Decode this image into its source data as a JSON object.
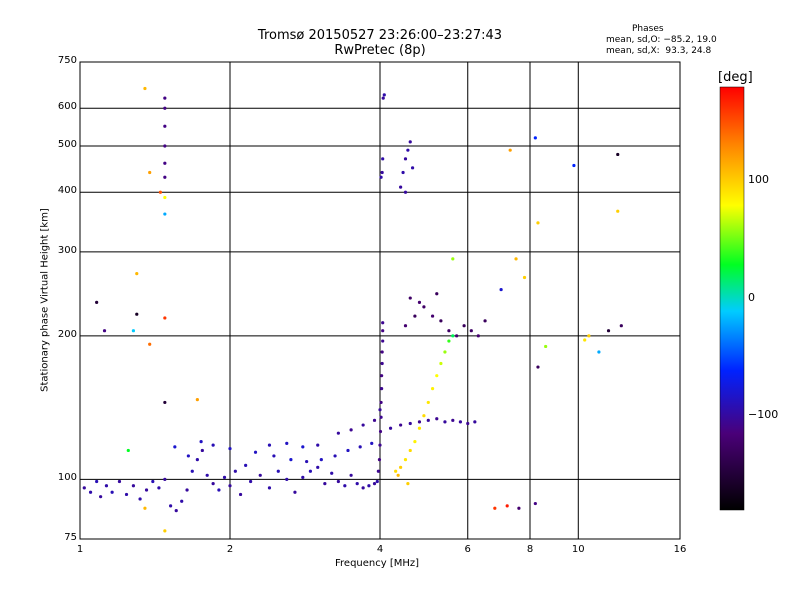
{
  "header": {
    "title_line1": "Tromsø 20150527 23:26:00–23:27:43",
    "title_line2": "RwPretec (8p)"
  },
  "phases": {
    "heading": "Phases",
    "o_line": "mean, sd,O: −85.2, 19.0",
    "x_line": "mean, sd,X:  93.3, 24.8"
  },
  "colorbar": {
    "unit": "[deg]",
    "ticks": [
      {
        "label": "100",
        "value": 100
      },
      {
        "label": "0",
        "value": 0
      },
      {
        "label": "−100",
        "value": -100
      }
    ],
    "range": [
      -180,
      180
    ]
  },
  "chart_data": {
    "type": "scatter",
    "title": "Tromsø 20150527 23:26:00–23:27:43",
    "subtitle": "RwPretec (8p)",
    "xlabel": "Frequency [MHz]",
    "ylabel": "Stationary phase Virtual Height [km]",
    "x_scale": "log2",
    "y_scale": "log",
    "xlim": [
      1,
      16
    ],
    "ylim": [
      75,
      750
    ],
    "x_ticks": [
      {
        "label": "1",
        "value": 1
      },
      {
        "label": "2",
        "value": 2
      },
      {
        "label": "4",
        "value": 4
      },
      {
        "label": "6",
        "value": 6
      },
      {
        "label": "8",
        "value": 8
      },
      {
        "label": "10",
        "value": 10
      },
      {
        "label": "16",
        "value": 16
      }
    ],
    "y_ticks": [
      {
        "label": "750",
        "value": 750
      },
      {
        "label": "600",
        "value": 600
      },
      {
        "label": "500",
        "value": 500
      },
      {
        "label": "400",
        "value": 400
      },
      {
        "label": "300",
        "value": 300
      },
      {
        "label": "200",
        "value": 200
      },
      {
        "label": "100",
        "value": 100
      },
      {
        "label": "75",
        "value": 75
      }
    ],
    "grid": true,
    "color_scale": "phase [deg], rainbow from black (−180) through blue, cyan, green, yellow to red (+180)",
    "point_groups": [
      {
        "trace": "low E/F1 layer, blue",
        "x_range": [
          1.0,
          4.0
        ],
        "y_range": [
          85,
          120
        ],
        "phase_deg": -95
      },
      {
        "trace": "O-mode F trace",
        "x_range": [
          3.6,
          6.3
        ],
        "y_range": [
          125,
          135
        ],
        "phase_deg": -100
      },
      {
        "trace": "near-vertical cusp",
        "x_range": [
          3.95,
          4.1
        ],
        "y_range": [
          100,
          215
        ],
        "phase_deg": -105
      },
      {
        "trace": "X-mode trace, yellow/green",
        "x_range": [
          4.1,
          5.5
        ],
        "y_range": [
          100,
          200
        ],
        "phase_deg": 95
      },
      {
        "trace": "upper scatter, violet/blue",
        "x_range": [
          4.5,
          6.5
        ],
        "y_range": [
          200,
          250
        ],
        "phase_deg": -120
      },
      {
        "trace": "high echoes",
        "x_range": [
          4.0,
          4.6
        ],
        "y_range": [
          400,
          640
        ],
        "phase_deg": -95
      }
    ],
    "points": [
      [
        1.02,
        96,
        -100
      ],
      [
        1.05,
        94,
        -95
      ],
      [
        1.08,
        99,
        -90
      ],
      [
        1.1,
        92,
        -100
      ],
      [
        1.13,
        97,
        -95
      ],
      [
        1.16,
        94,
        -90
      ],
      [
        1.2,
        99,
        -100
      ],
      [
        1.24,
        93,
        -95
      ],
      [
        1.28,
        97,
        -100
      ],
      [
        1.32,
        91,
        -95
      ],
      [
        1.36,
        95,
        -100
      ],
      [
        1.4,
        99,
        -90
      ],
      [
        1.44,
        96,
        -95
      ],
      [
        1.48,
        100,
        -100
      ],
      [
        1.52,
        88,
        -95
      ],
      [
        1.56,
        86,
        -100
      ],
      [
        1.6,
        90,
        -95
      ],
      [
        1.64,
        95,
        -100
      ],
      [
        1.68,
        104,
        -90
      ],
      [
        1.72,
        110,
        -95
      ],
      [
        1.76,
        115,
        -100
      ],
      [
        1.8,
        102,
        -95
      ],
      [
        1.85,
        98,
        -100
      ],
      [
        1.9,
        95,
        -90
      ],
      [
        1.95,
        101,
        -95
      ],
      [
        2.0,
        97,
        -100
      ],
      [
        2.05,
        104,
        -95
      ],
      [
        2.1,
        93,
        -100
      ],
      [
        2.15,
        107,
        -90
      ],
      [
        2.2,
        99,
        -95
      ],
      [
        2.3,
        102,
        -100
      ],
      [
        2.4,
        96,
        -95
      ],
      [
        2.5,
        104,
        -90
      ],
      [
        2.6,
        100,
        -95
      ],
      [
        2.7,
        94,
        -100
      ],
      [
        2.8,
        101,
        -95
      ],
      [
        2.9,
        104,
        -90
      ],
      [
        3.0,
        106,
        -95
      ],
      [
        3.1,
        98,
        -100
      ],
      [
        3.2,
        103,
        -95
      ],
      [
        3.3,
        99,
        -100
      ],
      [
        3.4,
        97,
        -95
      ],
      [
        3.5,
        102,
        -100
      ],
      [
        3.6,
        98,
        -95
      ],
      [
        3.7,
        96,
        -100
      ],
      [
        3.8,
        97,
        -95
      ],
      [
        3.9,
        98,
        -100
      ],
      [
        3.95,
        99,
        -95
      ],
      [
        2.25,
        114,
        -85
      ],
      [
        2.45,
        112,
        -90
      ],
      [
        2.65,
        110,
        -80
      ],
      [
        2.85,
        109,
        -90
      ],
      [
        3.05,
        110,
        -85
      ],
      [
        3.25,
        112,
        -90
      ],
      [
        3.45,
        115,
        -85
      ],
      [
        3.65,
        117,
        -90
      ],
      [
        3.85,
        119,
        -85
      ],
      [
        1.55,
        117,
        -80
      ],
      [
        1.65,
        112,
        -85
      ],
      [
        1.75,
        120,
        -85
      ],
      [
        1.85,
        118,
        -90
      ],
      [
        2.0,
        116,
        -85
      ],
      [
        2.4,
        118,
        -90
      ],
      [
        2.6,
        119,
        -85
      ],
      [
        2.8,
        117,
        -80
      ],
      [
        3.0,
        118,
        -95
      ],
      [
        3.3,
        125,
        -100
      ],
      [
        3.5,
        127,
        -105
      ],
      [
        3.7,
        130,
        -100
      ],
      [
        3.9,
        133,
        -105
      ],
      [
        4.0,
        140,
        -100
      ],
      [
        4.2,
        128,
        -100
      ],
      [
        4.4,
        130,
        -105
      ],
      [
        4.6,
        131,
        -100
      ],
      [
        4.8,
        132,
        -105
      ],
      [
        5.0,
        133,
        -100
      ],
      [
        5.2,
        134,
        -105
      ],
      [
        5.4,
        132,
        -100
      ],
      [
        5.6,
        133,
        -105
      ],
      [
        5.8,
        132,
        -100
      ],
      [
        6.0,
        131,
        -105
      ],
      [
        6.2,
        132,
        -100
      ],
      [
        3.97,
        104,
        -105
      ],
      [
        3.99,
        110,
        -110
      ],
      [
        4.0,
        118,
        -105
      ],
      [
        4.01,
        126,
        -110
      ],
      [
        4.02,
        135,
        -105
      ],
      [
        4.02,
        145,
        -110
      ],
      [
        4.03,
        155,
        -105
      ],
      [
        4.03,
        165,
        -110
      ],
      [
        4.04,
        175,
        -105
      ],
      [
        4.04,
        185,
        -110
      ],
      [
        4.05,
        195,
        -105
      ],
      [
        4.05,
        205,
        -110
      ],
      [
        4.05,
        213,
        -105
      ],
      [
        4.3,
        104,
        95
      ],
      [
        4.4,
        106,
        100
      ],
      [
        4.5,
        110,
        90
      ],
      [
        4.6,
        115,
        95
      ],
      [
        4.7,
        120,
        85
      ],
      [
        4.8,
        128,
        90
      ],
      [
        4.9,
        136,
        95
      ],
      [
        5.0,
        145,
        90
      ],
      [
        5.1,
        155,
        85
      ],
      [
        5.2,
        165,
        80
      ],
      [
        5.3,
        175,
        70
      ],
      [
        5.4,
        185,
        60
      ],
      [
        5.5,
        195,
        40
      ],
      [
        5.6,
        200,
        20
      ],
      [
        4.35,
        102,
        110
      ],
      [
        4.55,
        98,
        100
      ],
      [
        4.5,
        210,
        -120
      ],
      [
        4.7,
        220,
        -130
      ],
      [
        4.9,
        230,
        -125
      ],
      [
        5.1,
        220,
        -120
      ],
      [
        5.3,
        215,
        -130
      ],
      [
        5.5,
        205,
        -125
      ],
      [
        5.7,
        200,
        -120
      ],
      [
        5.9,
        210,
        -130
      ],
      [
        6.1,
        205,
        -125
      ],
      [
        6.3,
        200,
        -120
      ],
      [
        6.5,
        215,
        -130
      ],
      [
        4.6,
        240,
        -125
      ],
      [
        4.8,
        235,
        -120
      ],
      [
        5.2,
        245,
        -130
      ],
      [
        4.02,
        430,
        -95
      ],
      [
        4.04,
        440,
        -100
      ],
      [
        4.05,
        470,
        -95
      ],
      [
        4.06,
        630,
        -100
      ],
      [
        4.08,
        640,
        -95
      ],
      [
        4.4,
        410,
        -100
      ],
      [
        4.45,
        440,
        -95
      ],
      [
        4.5,
        470,
        -100
      ],
      [
        4.55,
        490,
        -95
      ],
      [
        4.6,
        510,
        -100
      ],
      [
        4.65,
        450,
        -95
      ],
      [
        4.5,
        400,
        -100
      ],
      [
        1.48,
        630,
        -110
      ],
      [
        1.48,
        600,
        -110
      ],
      [
        1.48,
        550,
        -110
      ],
      [
        1.48,
        500,
        -110
      ],
      [
        1.48,
        460,
        -110
      ],
      [
        1.48,
        430,
        -110
      ],
      [
        1.48,
        390,
        80
      ],
      [
        1.45,
        400,
        150
      ],
      [
        1.38,
        440,
        120
      ],
      [
        1.35,
        660,
        110
      ],
      [
        1.48,
        360,
        -20
      ],
      [
        1.08,
        235,
        -150
      ],
      [
        1.3,
        222,
        -160
      ],
      [
        1.48,
        218,
        160
      ],
      [
        1.12,
        205,
        -110
      ],
      [
        1.28,
        205,
        -10
      ],
      [
        1.38,
        192,
        140
      ],
      [
        1.48,
        145,
        -150
      ],
      [
        1.72,
        147,
        120
      ],
      [
        1.3,
        270,
        110
      ],
      [
        1.25,
        115,
        30
      ],
      [
        1.48,
        78,
        100
      ],
      [
        1.35,
        87,
        110
      ],
      [
        6.8,
        87,
        160
      ],
      [
        7.2,
        88,
        170
      ],
      [
        7.6,
        87,
        -120
      ],
      [
        8.2,
        89,
        -110
      ],
      [
        8.3,
        172,
        -130
      ],
      [
        8.6,
        190,
        60
      ],
      [
        10.5,
        200,
        100
      ],
      [
        10.3,
        196,
        90
      ],
      [
        11.0,
        185,
        -20
      ],
      [
        11.5,
        205,
        -150
      ],
      [
        12.2,
        210,
        -130
      ],
      [
        12.0,
        480,
        -160
      ],
      [
        12.0,
        365,
        100
      ],
      [
        9.8,
        455,
        -60
      ],
      [
        8.2,
        520,
        -60
      ],
      [
        8.3,
        345,
        100
      ],
      [
        7.5,
        290,
        110
      ],
      [
        7.8,
        265,
        100
      ],
      [
        7.3,
        490,
        120
      ],
      [
        5.6,
        290,
        60
      ],
      [
        7.0,
        250,
        -80
      ]
    ]
  }
}
